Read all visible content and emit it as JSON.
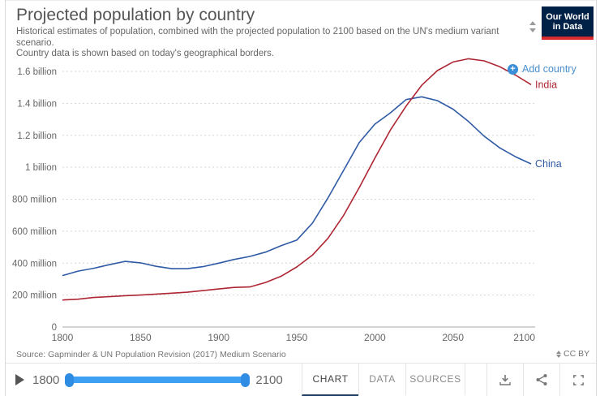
{
  "header": {
    "title": "Projected population by country",
    "subtitle_line1": "Historical estimates of population, combined with the projected population to 2100 based on the UN's medium variant scenario.",
    "subtitle_line2": "Country data is shown based on today's geographical borders.",
    "logo": {
      "line1": "Our World",
      "line2": "in Data",
      "bg_color": "#002147",
      "accent_color": "#d42b2f"
    }
  },
  "add_country": {
    "label": "Add country",
    "color": "#4a8fce",
    "icon": "plus-circle"
  },
  "chart_data": {
    "type": "line",
    "title": "Projected population by country",
    "xlabel": "",
    "ylabel": "",
    "x": [
      1800,
      1810,
      1820,
      1830,
      1840,
      1850,
      1860,
      1870,
      1880,
      1890,
      1900,
      1910,
      1920,
      1930,
      1940,
      1950,
      1960,
      1970,
      1980,
      1990,
      2000,
      2010,
      2020,
      2030,
      2040,
      2050,
      2060,
      2070,
      2080,
      2090,
      2100
    ],
    "series": [
      {
        "name": "China",
        "color": "#2f5aa5",
        "unit": "million",
        "values": [
          322,
          350,
          368,
          390,
          411,
          402,
          380,
          365,
          365,
          378,
          400,
          423,
          442,
          469,
          509,
          544,
          650,
          808,
          981,
          1155,
          1270,
          1341,
          1424,
          1441,
          1417,
          1364,
          1286,
          1194,
          1121,
          1066,
          1021
        ]
      },
      {
        "name": "India",
        "color": "#ae2633",
        "unit": "million",
        "values": [
          169,
          174,
          185,
          190,
          196,
          200,
          206,
          212,
          218,
          228,
          238,
          248,
          251,
          279,
          318,
          376,
          450,
          555,
          699,
          873,
          1057,
          1234,
          1383,
          1513,
          1605,
          1659,
          1679,
          1666,
          1629,
          1577,
          1517
        ]
      }
    ],
    "y_ticks": [
      {
        "value": 0,
        "label": "0"
      },
      {
        "value": 200,
        "label": "200 million"
      },
      {
        "value": 400,
        "label": "400 million"
      },
      {
        "value": 600,
        "label": "600 million"
      },
      {
        "value": 800,
        "label": "800 million"
      },
      {
        "value": 1000,
        "label": "1 billion"
      },
      {
        "value": 1200,
        "label": "1.2 billion"
      },
      {
        "value": 1400,
        "label": "1.4 billion"
      },
      {
        "value": 1600,
        "label": "1.6 billion"
      }
    ],
    "x_ticks": [
      1800,
      1850,
      1900,
      1950,
      2000,
      2050,
      2100
    ],
    "xlim": [
      1800,
      2100
    ],
    "ylim": [
      0,
      1760
    ],
    "grid": "horizontal-dashed",
    "legend_position": "line-end-labels"
  },
  "footer": {
    "source": "Source: Gapminder & UN Population Revision (2017) Medium Scenario",
    "license": "CC BY"
  },
  "toolbar": {
    "start_year": "1800",
    "end_year": "2100",
    "slider_color": "#3da0f2",
    "tabs": [
      {
        "label": "CHART",
        "active": true
      },
      {
        "label": "DATA",
        "active": false
      },
      {
        "label": "SOURCES",
        "active": false
      }
    ],
    "icons": [
      "download-icon",
      "share-icon",
      "fullscreen-icon"
    ]
  }
}
